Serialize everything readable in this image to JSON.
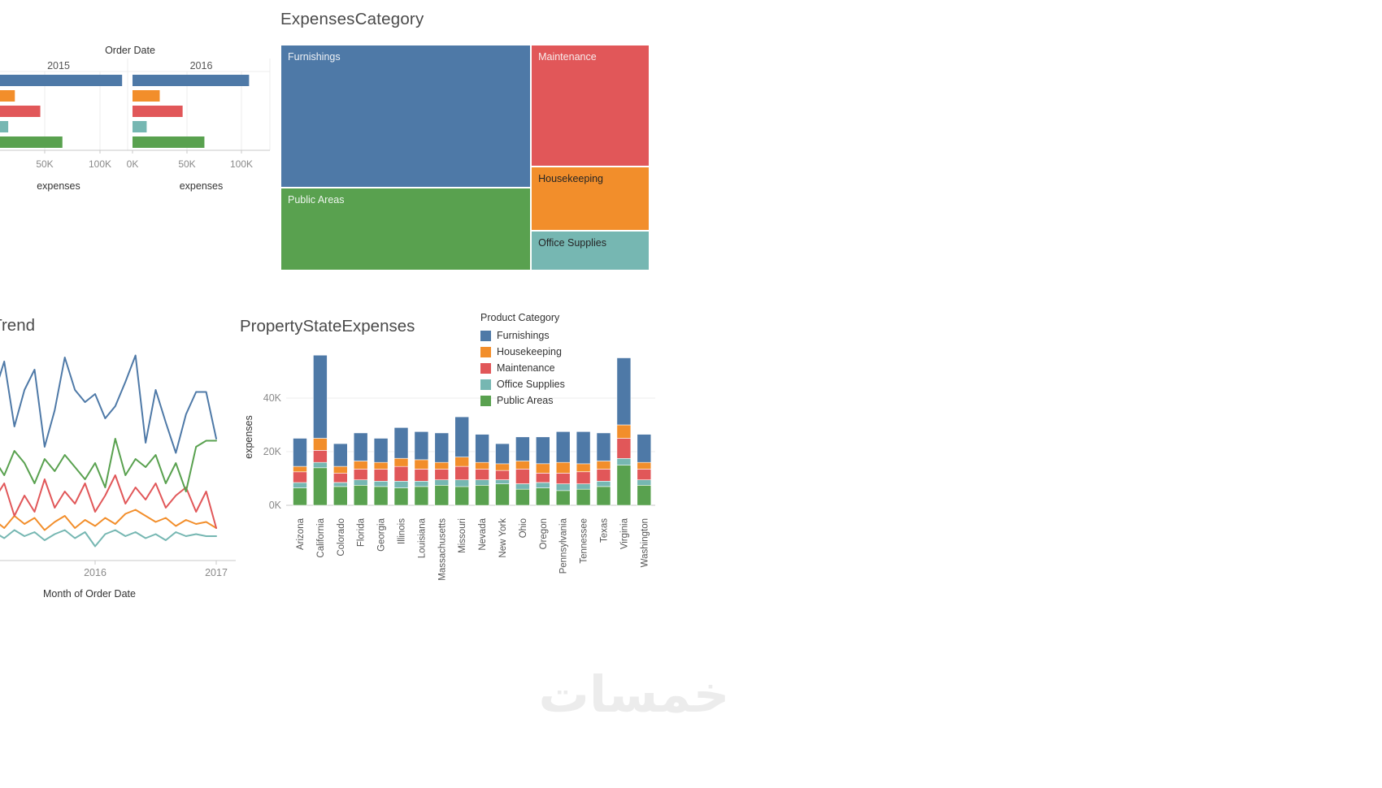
{
  "colors": {
    "furnishings": "#4e79a7",
    "housekeeping": "#f28e2b",
    "maintenance": "#e15759",
    "office_supplies": "#76b7b2",
    "public_areas": "#59a14f",
    "title_text": "#4a4a4a",
    "axis_text": "#8a8a8a",
    "grid": "#ececec",
    "watermark": "#ececec"
  },
  "legend": {
    "title": "Product Category",
    "items": [
      {
        "label": "Furnishings",
        "color": "#4e79a7"
      },
      {
        "label": "Housekeeping",
        "color": "#f28e2b"
      },
      {
        "label": "Maintenance",
        "color": "#e15759"
      },
      {
        "label": "Office Supplies",
        "color": "#76b7b2"
      },
      {
        "label": "Public Areas",
        "color": "#59a14f"
      }
    ]
  },
  "watermark": {
    "text": "خمسات"
  },
  "chart_data": [
    {
      "id": "order-date",
      "type": "bar",
      "orientation": "horizontal",
      "title": "Order Date",
      "xlabel": "expenses",
      "xticks": [
        "0K",
        "50K",
        "100K"
      ],
      "xlim": [
        0,
        130000
      ],
      "categories": [
        "Furnishings",
        "Housekeeping",
        "Maintenance",
        "Office Supplies",
        "Public Areas"
      ],
      "category_colors": [
        "#4e79a7",
        "#f28e2b",
        "#e15759",
        "#76b7b2",
        "#59a14f"
      ],
      "series": [
        {
          "name": "2015",
          "values": [
            120000,
            23000,
            46000,
            17000,
            66000
          ]
        },
        {
          "name": "2016",
          "values": [
            107000,
            25000,
            46000,
            13000,
            66000
          ]
        }
      ]
    },
    {
      "id": "expenses-category",
      "type": "treemap",
      "title": "ExpensesCategory",
      "columns": [
        [
          "Furnishings",
          "Public Areas"
        ],
        [
          "Maintenance",
          "Housekeeping",
          "Office Supplies"
        ]
      ],
      "items": [
        {
          "label": "Furnishings",
          "value": 227000,
          "color": "#4e79a7",
          "label_color": "#eef1f5"
        },
        {
          "label": "Public Areas",
          "value": 132000,
          "color": "#59a14f",
          "label_color": "#eef5ee"
        },
        {
          "label": "Maintenance",
          "value": 92000,
          "color": "#e15759",
          "label_color": "#f8eded"
        },
        {
          "label": "Housekeeping",
          "value": 48000,
          "color": "#f28e2b",
          "label_color": "#252525"
        },
        {
          "label": "Office Supplies",
          "value": 30000,
          "color": "#76b7b2",
          "label_color": "#252525"
        }
      ]
    },
    {
      "id": "expenses-trend",
      "type": "line",
      "title": "ExpensesTrend",
      "xlabel": "Month of Order Date",
      "xticks": [
        "2016",
        "2017"
      ],
      "x": [
        "Mar 2015",
        "Apr 2015",
        "May 2015",
        "Jun 2015",
        "Jul 2015",
        "Aug 2015",
        "Sep 2015",
        "Oct 2015",
        "Nov 2015",
        "Dec 2015",
        "Jan 2016",
        "Feb 2016",
        "Mar 2016",
        "Apr 2016",
        "May 2016",
        "Jun 2016",
        "Jul 2016",
        "Aug 2016",
        "Sep 2016",
        "Oct 2016",
        "Nov 2016",
        "Dec 2016",
        "Jan 2017"
      ],
      "series": [
        {
          "name": "Office Supplies",
          "color": "#76b7b2",
          "values": [
            1000,
            700,
            1100,
            800,
            1000,
            600,
            900,
            1100,
            700,
            1000,
            300,
            900,
            1100,
            800,
            1000,
            700,
            900,
            600,
            1000,
            800,
            900,
            800,
            800
          ]
        },
        {
          "name": "Housekeeping",
          "color": "#f28e2b",
          "values": [
            1600,
            1200,
            1800,
            1400,
            1700,
            1100,
            1500,
            1800,
            1200,
            1600,
            1300,
            1700,
            1400,
            1900,
            2100,
            1800,
            1500,
            1700,
            1300,
            1600,
            1400,
            1500,
            1200
          ]
        },
        {
          "name": "Maintenance",
          "color": "#e15759",
          "values": [
            2600,
            3400,
            1800,
            2800,
            2000,
            3600,
            2200,
            3000,
            2400,
            3400,
            2000,
            2800,
            3800,
            2400,
            3200,
            2600,
            3400,
            2200,
            2800,
            3200,
            2000,
            3000,
            1200
          ]
        },
        {
          "name": "Public Areas",
          "color": "#59a14f",
          "values": [
            4600,
            3800,
            5000,
            4400,
            3400,
            4600,
            4000,
            4800,
            4200,
            3600,
            4400,
            3200,
            5600,
            3800,
            4600,
            4200,
            4800,
            3400,
            4400,
            3000,
            5200,
            5500,
            5500
          ]
        },
        {
          "name": "Furnishings",
          "color": "#4e79a7",
          "values": [
            7800,
            9400,
            6200,
            8000,
            9000,
            5200,
            7000,
            9600,
            8000,
            7400,
            7800,
            6600,
            7200,
            8400,
            9700,
            5400,
            8000,
            6400,
            4900,
            6800,
            7900,
            7900,
            5600
          ]
        }
      ]
    },
    {
      "id": "property-state-expenses",
      "type": "stacked-bar",
      "title": "PropertyStateExpenses",
      "ylabel": "expenses",
      "yticks": [
        "0K",
        "20K",
        "40K"
      ],
      "ylim": [
        0,
        58000
      ],
      "categories": [
        "Arizona",
        "California",
        "Colorado",
        "Florida",
        "Georgia",
        "Illinois",
        "Louisiana",
        "Massachusetts",
        "Missouri",
        "Nevada",
        "New York",
        "Ohio",
        "Oregon",
        "Pennsylvania",
        "Tennessee",
        "Texas",
        "Virginia",
        "Washington"
      ],
      "series": [
        {
          "name": "Public Areas",
          "color": "#59a14f",
          "values": [
            6500,
            14000,
            7000,
            7500,
            7000,
            6500,
            7000,
            7500,
            7000,
            7500,
            8000,
            6000,
            6500,
            5500,
            6000,
            7000,
            15000,
            7500
          ]
        },
        {
          "name": "Office Supplies",
          "color": "#76b7b2",
          "values": [
            2000,
            2000,
            1500,
            2000,
            2000,
            2500,
            2000,
            2000,
            2500,
            2000,
            1500,
            2000,
            2000,
            2500,
            2000,
            2000,
            2500,
            2000
          ]
        },
        {
          "name": "Maintenance",
          "color": "#e15759",
          "values": [
            4000,
            4500,
            3500,
            4000,
            4500,
            5500,
            4500,
            4000,
            5000,
            4000,
            3500,
            5500,
            3500,
            4000,
            4500,
            4500,
            7500,
            4000
          ]
        },
        {
          "name": "Housekeeping",
          "color": "#f28e2b",
          "values": [
            2000,
            4500,
            2500,
            3000,
            2500,
            3000,
            3500,
            2500,
            3500,
            2500,
            2500,
            3000,
            3500,
            4000,
            3000,
            3000,
            5000,
            2500
          ]
        },
        {
          "name": "Furnishings",
          "color": "#4e79a7",
          "values": [
            10500,
            31000,
            8500,
            10500,
            9000,
            11500,
            10500,
            11000,
            15000,
            10500,
            7500,
            9000,
            10000,
            11500,
            12000,
            10500,
            25000,
            10500
          ]
        }
      ]
    }
  ]
}
